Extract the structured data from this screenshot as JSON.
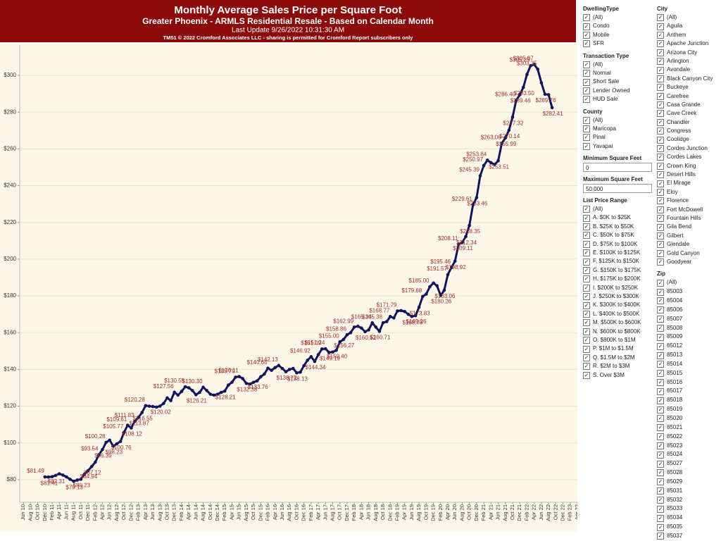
{
  "chart_data": {
    "type": "line",
    "title": "Monthly Average Sales Price per Square Foot",
    "subtitle": "Greater Phoenix - ARMLS Residential Resale - Based on Calendar Month",
    "notes": [
      "Last Update 9/26/2022 10:31:30 AM",
      "TM51 © 2022 Cromford Associates LLC - sharing is permitted for Cromford Report subscribers only"
    ],
    "color": "#14145e",
    "label_color": "#a0302a",
    "grid": true,
    "xlim": [
      -1,
      154.4
    ],
    "ylim": [
      67.7,
      316.5
    ],
    "yticks": [
      {
        "value": 80,
        "label": "$80"
      },
      {
        "value": 100,
        "label": "$100"
      },
      {
        "value": 120,
        "label": "$120"
      },
      {
        "value": 140,
        "label": "$140"
      },
      {
        "value": 160,
        "label": "$160"
      },
      {
        "value": 180,
        "label": "$180"
      },
      {
        "value": 200,
        "label": "$200"
      },
      {
        "value": 220,
        "label": "$220"
      },
      {
        "value": 240,
        "label": "$240"
      },
      {
        "value": 260,
        "label": "$260"
      },
      {
        "value": 280,
        "label": "$280"
      },
      {
        "value": 300,
        "label": "$300"
      }
    ],
    "xticks": [
      {
        "value": 0,
        "label": "Jun 10"
      },
      {
        "value": 2,
        "label": "Aug 10"
      },
      {
        "value": 4,
        "label": "Oct 10"
      },
      {
        "value": 6,
        "label": "Dec 10"
      },
      {
        "value": 8,
        "label": "Feb 11"
      },
      {
        "value": 10,
        "label": "Apr 11"
      },
      {
        "value": 12,
        "label": "Jun 11"
      },
      {
        "value": 14,
        "label": "Aug 11"
      },
      {
        "value": 16,
        "label": "Oct 11"
      },
      {
        "value": 18,
        "label": "Dec 11"
      },
      {
        "value": 20,
        "label": "Feb 12"
      },
      {
        "value": 22,
        "label": "Apr 12"
      },
      {
        "value": 24,
        "label": "Jun 12"
      },
      {
        "value": 26,
        "label": "Aug 12"
      },
      {
        "value": 28,
        "label": "Oct 12"
      },
      {
        "value": 30,
        "label": "Dec 12"
      },
      {
        "value": 32,
        "label": "Feb 13"
      },
      {
        "value": 34,
        "label": "Apr 13"
      },
      {
        "value": 36,
        "label": "Jun 13"
      },
      {
        "value": 38,
        "label": "Aug 13"
      },
      {
        "value": 40,
        "label": "Oct 13"
      },
      {
        "value": 42,
        "label": "Dec 13"
      },
      {
        "value": 44,
        "label": "Feb 14"
      },
      {
        "value": 46,
        "label": "Apr 14"
      },
      {
        "value": 48,
        "label": "Jun 14"
      },
      {
        "value": 50,
        "label": "Aug 14"
      },
      {
        "value": 52,
        "label": "Oct 14"
      },
      {
        "value": 54,
        "label": "Dec 14"
      },
      {
        "value": 56,
        "label": "Feb 15"
      },
      {
        "value": 58,
        "label": "Apr 15"
      },
      {
        "value": 60,
        "label": "Jun 15"
      },
      {
        "value": 62,
        "label": "Aug 15"
      },
      {
        "value": 64,
        "label": "Oct 15"
      },
      {
        "value": 66,
        "label": "Dec 15"
      },
      {
        "value": 68,
        "label": "Feb 16"
      },
      {
        "value": 70,
        "label": "Apr 16"
      },
      {
        "value": 72,
        "label": "Jun 16"
      },
      {
        "value": 74,
        "label": "Aug 16"
      },
      {
        "value": 76,
        "label": "Oct 16"
      },
      {
        "value": 78,
        "label": "Dec 16"
      },
      {
        "value": 80,
        "label": "Feb 17"
      },
      {
        "value": 82,
        "label": "Apr 17"
      },
      {
        "value": 84,
        "label": "Jun 17"
      },
      {
        "value": 86,
        "label": "Aug 17"
      },
      {
        "value": 88,
        "label": "Oct 17"
      },
      {
        "value": 90,
        "label": "Dec 17"
      },
      {
        "value": 92,
        "label": "Feb 18"
      },
      {
        "value": 94,
        "label": "Apr 18"
      },
      {
        "value": 96,
        "label": "Jun 18"
      },
      {
        "value": 98,
        "label": "Aug 18"
      },
      {
        "value": 100,
        "label": "Oct 18"
      },
      {
        "value": 102,
        "label": "Dec 18"
      },
      {
        "value": 104,
        "label": "Feb 19"
      },
      {
        "value": 106,
        "label": "Apr 19"
      },
      {
        "value": 108,
        "label": "Jun 19"
      },
      {
        "value": 110,
        "label": "Aug 19"
      },
      {
        "value": 112,
        "label": "Oct 19"
      },
      {
        "value": 114,
        "label": "Dec 19"
      },
      {
        "value": 116,
        "label": "Feb 20"
      },
      {
        "value": 118,
        "label": "Apr 20"
      },
      {
        "value": 120,
        "label": "Jun 20"
      },
      {
        "value": 122,
        "label": "Aug 20"
      },
      {
        "value": 124,
        "label": "Oct 20"
      },
      {
        "value": 126,
        "label": "Dec 20"
      },
      {
        "value": 128,
        "label": "Feb 21"
      },
      {
        "value": 130,
        "label": "Apr 21"
      },
      {
        "value": 132,
        "label": "Jun 21"
      },
      {
        "value": 134,
        "label": "Aug 21"
      },
      {
        "value": 136,
        "label": "Oct 21"
      },
      {
        "value": 138,
        "label": "Dec 21"
      },
      {
        "value": 140,
        "label": "Feb 22"
      },
      {
        "value": 142,
        "label": "Apr 22"
      },
      {
        "value": 144,
        "label": "Jun 22"
      },
      {
        "value": 146,
        "label": "Aug 22"
      },
      {
        "value": 148,
        "label": "Oct 22"
      },
      {
        "value": 150,
        "label": "Dec 22"
      },
      {
        "value": 152,
        "label": "Feb 23"
      },
      {
        "value": 154,
        "label": "Apr 23"
      }
    ],
    "x": [
      6,
      7,
      8,
      9,
      10,
      11,
      12,
      13,
      14,
      15,
      16,
      17,
      18,
      19,
      20,
      21,
      22,
      23,
      24,
      25,
      26,
      27,
      28,
      29,
      30,
      31,
      32,
      33,
      34,
      35,
      36,
      37,
      38,
      39,
      40,
      41,
      42,
      43,
      44,
      45,
      46,
      47,
      48,
      49,
      50,
      51,
      52,
      53,
      54,
      55,
      56,
      57,
      58,
      59,
      60,
      61,
      62,
      63,
      64,
      65,
      66,
      67,
      68,
      69,
      70,
      71,
      72,
      73,
      74,
      75,
      76,
      77,
      78,
      79,
      80,
      81,
      82,
      83,
      84,
      85,
      86,
      87,
      88,
      89,
      90,
      91,
      92,
      93,
      94,
      95,
      96,
      97,
      98,
      99,
      100,
      101,
      102,
      103,
      104,
      105,
      106,
      107,
      108,
      109,
      110,
      111,
      112,
      113,
      114,
      115,
      116,
      117,
      118,
      119,
      120,
      121,
      122,
      123,
      124,
      125,
      126,
      127,
      128,
      129,
      130,
      131,
      132,
      133,
      134,
      135,
      136,
      137,
      138,
      139,
      140,
      141,
      142,
      143,
      144,
      145,
      146,
      147
    ],
    "values": [
      81.49,
      81.41,
      81.6,
      82.31,
      83.2,
      82.5,
      81.5,
      80.2,
      79.13,
      79.8,
      80.23,
      83.0,
      84.94,
      87.12,
      89.5,
      93.54,
      96.39,
      100.28,
      101.5,
      98.23,
      99.5,
      100.76,
      105.77,
      109.61,
      108.12,
      111.83,
      113.87,
      116.55,
      120.28,
      120.0,
      119.8,
      119.5,
      120.02,
      121.5,
      124.5,
      123.0,
      127.56,
      126.0,
      128.0,
      130.55,
      130.0,
      128.5,
      126.21,
      127.5,
      130.3,
      128.5,
      126.5,
      126.0,
      126.5,
      127.5,
      128.21,
      131.5,
      133.0,
      135.79,
      136.11,
      135.0,
      132.38,
      132.0,
      133.0,
      133.76,
      136.0,
      137.5,
      140.66,
      139.5,
      141.0,
      142.13,
      140.5,
      138.72,
      140.0,
      140.5,
      138.13,
      138.5,
      142.0,
      145.0,
      146.92,
      144.34,
      148.0,
      151.09,
      151.24,
      149.19,
      149.5,
      150.4,
      155.0,
      156.27,
      158.86,
      160.0,
      162.99,
      163.5,
      162.5,
      160.52,
      161.5,
      165.34,
      163.0,
      160.71,
      165.38,
      166.0,
      168.77,
      168.0,
      171.79,
      172.0,
      171.5,
      170.0,
      168.79,
      169.26,
      173.83,
      179.68,
      181.0,
      185.0,
      187.0,
      185.5,
      180.26,
      183.06,
      191.57,
      195.46,
      198.92,
      208.11,
      209.11,
      212.34,
      218.35,
      229.61,
      233.46,
      245.39,
      250.97,
      253.84,
      252.5,
      251.5,
      253.51,
      263.06,
      265.99,
      270.14,
      277.32,
      286.4,
      289.46,
      293.5,
      300.5,
      305.25,
      305.97,
      303.35,
      296.0,
      289.76,
      289.5,
      282.41
    ],
    "value_labels": [
      "$81.49",
      "$81.41",
      null,
      "$82.31",
      null,
      null,
      null,
      null,
      "$79.13",
      null,
      "$80.23",
      null,
      "$84.94",
      "$87.12",
      null,
      "$93.54",
      "$96.39",
      "$100.28",
      null,
      "$98.23",
      null,
      "$100.76",
      "$105.77",
      "$109.61",
      "$108.12",
      "$111.83",
      "$113.87",
      "$116.55",
      "$120.28",
      null,
      null,
      null,
      "$120.02",
      null,
      null,
      null,
      "$127.56",
      null,
      null,
      "$130.55",
      null,
      null,
      "$126.21",
      null,
      "$130.30",
      null,
      null,
      null,
      null,
      null,
      "$128.21",
      null,
      null,
      "$135.79",
      "$136.11",
      null,
      "$132.38",
      null,
      null,
      "$133.76",
      null,
      null,
      "$140.66",
      null,
      null,
      "$142.13",
      null,
      "$138.72",
      null,
      null,
      "$138.13",
      null,
      null,
      null,
      "$146.92",
      "$144.34",
      null,
      "$151.09",
      "$151.24",
      "$149.19",
      null,
      "$150.40",
      "$155.00",
      "$156.27",
      "$158.86",
      null,
      "$162.99",
      null,
      null,
      "$160.52",
      null,
      "$165.34",
      null,
      "$160.71",
      "$165.38",
      null,
      "$168.77",
      null,
      "$171.79",
      null,
      null,
      null,
      "$168.79",
      "$169.26",
      "$173.83",
      "$179.68",
      null,
      "$185.00",
      null,
      null,
      "$180.26",
      "$183.06",
      "$191.57",
      "$195.46",
      "$198.92",
      "$208.11",
      "$209.11",
      "$212.34",
      "$218.35",
      "$229.61",
      "$233.46",
      "$245.39",
      "$250.97",
      "$253.84",
      null,
      null,
      "$253.51",
      "$263.06",
      "$265.99",
      "$270.14",
      "$277.32",
      "$286.40",
      "$289.46",
      "$293.50",
      null,
      "$305.25",
      "$305.97",
      "$303.35",
      null,
      "$289.76",
      null,
      "$282.41"
    ]
  },
  "filters": {
    "col1": [
      {
        "title": "DwellingType",
        "options": [
          "(All)",
          "Condo",
          "Mobile",
          "SFR"
        ]
      },
      {
        "title": "Transaction Type",
        "options": [
          "(All)",
          "Normal",
          "Short Sale",
          "Lender Owned",
          "HUD Sale"
        ]
      },
      {
        "title": "County",
        "options": [
          "(All)",
          "Maricopa",
          "Pinal",
          "Yavapai"
        ]
      },
      {
        "title": "Minimum Square Feet",
        "value": "0"
      },
      {
        "title": "Maximum Square Feet",
        "value": "50,000"
      },
      {
        "title": "List Price Range",
        "options": [
          "(All)",
          "A. $0K to $25K",
          "B. $25K to $50K",
          "C. $50K to $75K",
          "D. $75K to $100K",
          "E. $100K to $125K",
          "F. $125K to $150K",
          "G. $150K to $175K",
          "H. $175K to $200K",
          "I. $200K to $250K",
          "J. $250K to $300K",
          "K. $300K to $400K",
          "L. $400K to $500K",
          "M. $500K to $600K",
          "N. $600K to $800K",
          "O. $800K to $1M",
          "P. $1M to $1.5M",
          "Q. $1.5M to $2M",
          "R. $2M to $3M",
          "S. Over $3M"
        ]
      }
    ],
    "col2": [
      {
        "title": "City",
        "options": [
          "(All)",
          "Aguila",
          "Anthem",
          "Apache Junction",
          "Arizona City",
          "Arlington",
          "Avondale",
          "Black Canyon City",
          "Buckeye",
          "Carefree",
          "Casa Grande",
          "Cave Creek",
          "Chandler",
          "Congress",
          "Coolidge",
          "Cordes Junction",
          "Cordes Lakes",
          "Crown King",
          "Desert Hills",
          "El Mirage",
          "Eloy",
          "Florence",
          "Fort McDowell",
          "Fountain Hills",
          "Gila Bend",
          "Gilbert",
          "Glendale",
          "Gold Canyon",
          "Goodyear"
        ]
      },
      {
        "title": "Zip",
        "options": [
          "(All)",
          "85003",
          "85004",
          "85006",
          "85007",
          "85008",
          "85009",
          "85012",
          "85013",
          "85014",
          "85015",
          "85016",
          "85017",
          "85018",
          "85019",
          "85020",
          "85021",
          "85022",
          "85023",
          "85024",
          "85027",
          "85028",
          "85029",
          "85031",
          "85032",
          "85033",
          "85034",
          "85035",
          "85037"
        ]
      }
    ]
  }
}
